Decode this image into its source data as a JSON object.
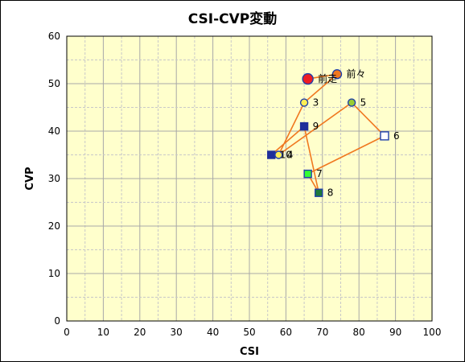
{
  "chart_data": {
    "type": "scatter",
    "title": "CSI-CVP変動",
    "xlabel": "CSI",
    "ylabel": "CVP",
    "xlim": [
      0,
      100
    ],
    "ylim": [
      0,
      60
    ],
    "x_ticks": [
      0,
      10,
      20,
      30,
      40,
      50,
      60,
      70,
      80,
      90,
      100
    ],
    "y_ticks": [
      0,
      10,
      20,
      30,
      40,
      50,
      60
    ],
    "grid": true,
    "plot_background": "#ffffcc",
    "line_color": "#f07820",
    "points": [
      {
        "label": "前走",
        "x": 66,
        "y": 51,
        "marker": "circle",
        "fill": "#ee1c24",
        "stroke": "#1f3faa",
        "size": 13
      },
      {
        "label": "前々",
        "x": 74,
        "y": 52,
        "marker": "circle",
        "fill": "#f07820",
        "stroke": "#1f3faa",
        "size": 11
      },
      {
        "label": "3",
        "x": 65,
        "y": 46,
        "marker": "circle",
        "fill": "#ffee55",
        "stroke": "#1f3faa",
        "size": 9
      },
      {
        "label": "4",
        "x": 58,
        "y": 35,
        "marker": "circle",
        "fill": "#ffee55",
        "stroke": "#1f3faa",
        "size": 9
      },
      {
        "label": "5",
        "x": 78,
        "y": 46,
        "marker": "circle",
        "fill": "#99cc33",
        "stroke": "#1f3faa",
        "size": 9
      },
      {
        "label": "6",
        "x": 87,
        "y": 39,
        "marker": "square",
        "fill": "#ffffff",
        "stroke": "#1f3faa",
        "size": 10
      },
      {
        "label": "7",
        "x": 66,
        "y": 31,
        "marker": "square",
        "fill": "#33ff33",
        "stroke": "#1f3faa",
        "size": 9
      },
      {
        "label": "8",
        "x": 69,
        "y": 27,
        "marker": "square",
        "fill": "#1f7a3a",
        "stroke": "#1f3faa",
        "size": 9
      },
      {
        "label": "9",
        "x": 65,
        "y": 41,
        "marker": "square",
        "fill": "#1f2f9a",
        "stroke": "#1f2f9a",
        "size": 9
      },
      {
        "label": "10",
        "x": 56,
        "y": 35,
        "marker": "square",
        "fill": "#1f2f9a",
        "stroke": "#1f2f9a",
        "size": 9
      }
    ]
  }
}
